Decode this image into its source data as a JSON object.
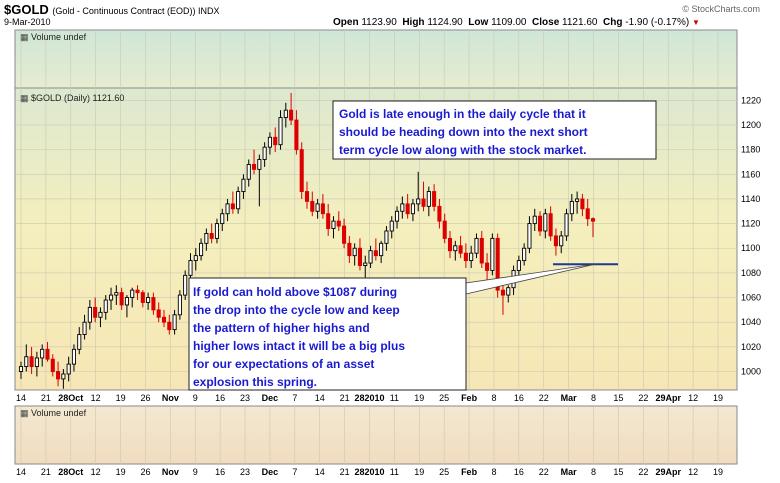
{
  "header": {
    "symbol": "$GOLD",
    "subtitle": "(Gold - Continuous Contract (EOD))  INDX",
    "date": "9-Mar-2010",
    "open_label": "Open",
    "open": "1123.90",
    "high_label": "High",
    "high": "1124.90",
    "low_label": "Low",
    "low": "1109.00",
    "close_label": "Close",
    "close": "1121.60",
    "chg_label": "Chg",
    "chg": "-1.90 (-0.17%)",
    "brand": "© StockCharts.com"
  },
  "colors": {
    "up": "#000000",
    "down": "#dd0000",
    "support_line": "#1a3a9a",
    "annot_text": "#1a1ad0",
    "accent": "#d00000"
  },
  "panels": {
    "volume_top": "Volume undef",
    "price_label": "$GOLD (Daily) 1121.60",
    "volume_bottom": "Volume undef"
  },
  "annotations": {
    "top": [
      "Gold is late enough in the daily cycle that it",
      "should be heading down into the next short",
      "term cycle low along with the stock market."
    ],
    "bottom": [
      "If gold can hold above $1087 during",
      "the drop into the cycle low and keep",
      "the pattern of higher highs and",
      "higher lows intact it will be a big plus",
      "for our expectations of an asset",
      "explosion this spring."
    ]
  },
  "chart_data": {
    "type": "candlestick",
    "title": "$GOLD (Daily) 1121.60",
    "y_ticks": [
      1000,
      1020,
      1040,
      1060,
      1080,
      1100,
      1120,
      1140,
      1160,
      1180,
      1200,
      1220
    ],
    "ylim": [
      985,
      1230
    ],
    "x_labels": [
      "14",
      "21",
      "28Oct",
      "12",
      "19",
      "26",
      "Nov",
      "9",
      "16",
      "23",
      "Dec",
      "7",
      "14",
      "21",
      "282010",
      "11",
      "19",
      "25",
      "Feb",
      "8",
      "16",
      "22",
      "Mar",
      "8",
      "15",
      "22",
      "29Apr",
      "12",
      "19"
    ],
    "x_label_bold": [
      "28Oct",
      "Nov",
      "Dec",
      "282010",
      "Feb",
      "Mar",
      "29Apr"
    ],
    "support_level": 1087,
    "candles": [
      [
        1000,
        1008,
        994,
        1004
      ],
      [
        1004,
        1022,
        1000,
        1012
      ],
      [
        1012,
        1020,
        998,
        1004
      ],
      [
        1004,
        1016,
        996,
        1011
      ],
      [
        1011,
        1022,
        1004,
        1018
      ],
      [
        1018,
        1024,
        1008,
        1010
      ],
      [
        1010,
        1014,
        996,
        1000
      ],
      [
        1000,
        1008,
        988,
        994
      ],
      [
        994,
        1002,
        986,
        998
      ],
      [
        998,
        1012,
        992,
        1006
      ],
      [
        1006,
        1022,
        1000,
        1018
      ],
      [
        1018,
        1036,
        1014,
        1030
      ],
      [
        1030,
        1046,
        1026,
        1040
      ],
      [
        1040,
        1058,
        1034,
        1052
      ],
      [
        1052,
        1060,
        1040,
        1044
      ],
      [
        1044,
        1052,
        1036,
        1048
      ],
      [
        1048,
        1062,
        1042,
        1058
      ],
      [
        1058,
        1068,
        1050,
        1062
      ],
      [
        1062,
        1070,
        1054,
        1064
      ],
      [
        1064,
        1068,
        1050,
        1054
      ],
      [
        1054,
        1062,
        1044,
        1060
      ],
      [
        1060,
        1068,
        1052,
        1066
      ],
      [
        1066,
        1070,
        1058,
        1064
      ],
      [
        1064,
        1066,
        1052,
        1056
      ],
      [
        1056,
        1064,
        1050,
        1060
      ],
      [
        1060,
        1064,
        1046,
        1050
      ],
      [
        1050,
        1056,
        1040,
        1044
      ],
      [
        1044,
        1050,
        1036,
        1040
      ],
      [
        1040,
        1046,
        1030,
        1034
      ],
      [
        1034,
        1050,
        1030,
        1046
      ],
      [
        1046,
        1066,
        1042,
        1062
      ],
      [
        1062,
        1082,
        1058,
        1078
      ],
      [
        1078,
        1096,
        1074,
        1090
      ],
      [
        1090,
        1100,
        1082,
        1094
      ],
      [
        1094,
        1108,
        1090,
        1104
      ],
      [
        1104,
        1116,
        1098,
        1112
      ],
      [
        1112,
        1120,
        1104,
        1108
      ],
      [
        1108,
        1124,
        1104,
        1120
      ],
      [
        1120,
        1132,
        1114,
        1128
      ],
      [
        1128,
        1140,
        1122,
        1136
      ],
      [
        1136,
        1146,
        1128,
        1132
      ],
      [
        1132,
        1150,
        1128,
        1146
      ],
      [
        1146,
        1160,
        1140,
        1156
      ],
      [
        1156,
        1172,
        1150,
        1168
      ],
      [
        1168,
        1180,
        1160,
        1164
      ],
      [
        1164,
        1176,
        1134,
        1172
      ],
      [
        1172,
        1186,
        1166,
        1182
      ],
      [
        1182,
        1194,
        1176,
        1190
      ],
      [
        1190,
        1198,
        1178,
        1184
      ],
      [
        1184,
        1212,
        1180,
        1206
      ],
      [
        1206,
        1218,
        1198,
        1212
      ],
      [
        1212,
        1226,
        1200,
        1204
      ],
      [
        1204,
        1212,
        1176,
        1180
      ],
      [
        1180,
        1186,
        1140,
        1146
      ],
      [
        1146,
        1154,
        1132,
        1138
      ],
      [
        1138,
        1146,
        1126,
        1130
      ],
      [
        1130,
        1140,
        1124,
        1136
      ],
      [
        1136,
        1144,
        1124,
        1128
      ],
      [
        1128,
        1136,
        1110,
        1116
      ],
      [
        1116,
        1126,
        1108,
        1122
      ],
      [
        1122,
        1130,
        1114,
        1118
      ],
      [
        1118,
        1124,
        1100,
        1104
      ],
      [
        1104,
        1110,
        1088,
        1094
      ],
      [
        1094,
        1104,
        1086,
        1100
      ],
      [
        1100,
        1108,
        1082,
        1086
      ],
      [
        1086,
        1094,
        1076,
        1088
      ],
      [
        1088,
        1102,
        1084,
        1098
      ],
      [
        1098,
        1108,
        1090,
        1094
      ],
      [
        1094,
        1106,
        1088,
        1104
      ],
      [
        1104,
        1118,
        1098,
        1114
      ],
      [
        1114,
        1126,
        1108,
        1122
      ],
      [
        1122,
        1134,
        1116,
        1130
      ],
      [
        1130,
        1142,
        1124,
        1136
      ],
      [
        1136,
        1144,
        1124,
        1128
      ],
      [
        1128,
        1140,
        1122,
        1136
      ],
      [
        1136,
        1162,
        1130,
        1140
      ],
      [
        1140,
        1154,
        1130,
        1134
      ],
      [
        1134,
        1150,
        1126,
        1146
      ],
      [
        1146,
        1152,
        1130,
        1134
      ],
      [
        1134,
        1140,
        1116,
        1122
      ],
      [
        1122,
        1128,
        1104,
        1108
      ],
      [
        1108,
        1114,
        1092,
        1098
      ],
      [
        1098,
        1106,
        1090,
        1102
      ],
      [
        1102,
        1110,
        1092,
        1096
      ],
      [
        1096,
        1104,
        1084,
        1090
      ],
      [
        1090,
        1102,
        1084,
        1096
      ],
      [
        1096,
        1112,
        1092,
        1108
      ],
      [
        1108,
        1114,
        1084,
        1088
      ],
      [
        1088,
        1096,
        1074,
        1082
      ],
      [
        1082,
        1112,
        1078,
        1108
      ],
      [
        1108,
        1112,
        1060,
        1066
      ],
      [
        1066,
        1074,
        1046,
        1062
      ],
      [
        1062,
        1070,
        1056,
        1068
      ],
      [
        1068,
        1086,
        1062,
        1082
      ],
      [
        1082,
        1094,
        1076,
        1090
      ],
      [
        1090,
        1104,
        1086,
        1100
      ],
      [
        1100,
        1126,
        1096,
        1120
      ],
      [
        1120,
        1132,
        1114,
        1126
      ],
      [
        1126,
        1130,
        1110,
        1114
      ],
      [
        1114,
        1132,
        1108,
        1128
      ],
      [
        1128,
        1134,
        1106,
        1110
      ],
      [
        1110,
        1116,
        1094,
        1102
      ],
      [
        1102,
        1114,
        1096,
        1110
      ],
      [
        1110,
        1132,
        1106,
        1128
      ],
      [
        1128,
        1144,
        1122,
        1138
      ],
      [
        1138,
        1146,
        1128,
        1140
      ],
      [
        1140,
        1144,
        1126,
        1132
      ],
      [
        1132,
        1140,
        1118,
        1124
      ],
      [
        1124,
        1125,
        1109,
        1122
      ]
    ]
  }
}
